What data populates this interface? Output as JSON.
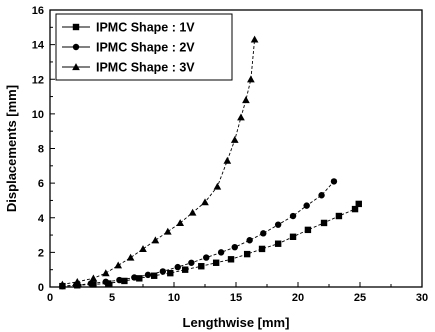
{
  "chart_data": {
    "type": "line",
    "title": "",
    "xlabel": "Lengthwise [mm]",
    "ylabel": "Displacements [mm]",
    "xlim": [
      0,
      30
    ],
    "ylim": [
      0,
      16
    ],
    "xticks": [
      0,
      5,
      10,
      15,
      20,
      25,
      30
    ],
    "yticks": [
      0,
      2,
      4,
      6,
      8,
      10,
      12,
      14,
      16
    ],
    "grid": false,
    "legend_position": "top-left",
    "series": [
      {
        "name": "IPMC Shape : 1V",
        "marker": "square",
        "x": [
          1.0,
          2.2,
          3.5,
          4.7,
          6.0,
          7.2,
          8.4,
          9.7,
          10.9,
          12.2,
          13.4,
          14.6,
          15.9,
          17.1,
          18.4,
          19.6,
          20.8,
          22.1,
          23.3,
          24.6,
          24.9
        ],
        "y": [
          0.05,
          0.1,
          0.15,
          0.2,
          0.35,
          0.5,
          0.65,
          0.8,
          1.0,
          1.2,
          1.4,
          1.6,
          1.9,
          2.2,
          2.5,
          2.9,
          3.3,
          3.7,
          4.1,
          4.5,
          4.8
        ]
      },
      {
        "name": "IPMC Shape : 2V",
        "marker": "circle",
        "x": [
          1.0,
          2.1,
          3.3,
          4.5,
          5.6,
          6.8,
          7.9,
          9.1,
          10.3,
          11.4,
          12.6,
          13.8,
          14.9,
          16.1,
          17.2,
          18.4,
          19.6,
          20.7,
          21.9,
          22.9
        ],
        "y": [
          0.05,
          0.1,
          0.2,
          0.3,
          0.4,
          0.55,
          0.7,
          0.9,
          1.15,
          1.4,
          1.7,
          2.0,
          2.3,
          2.7,
          3.1,
          3.6,
          4.1,
          4.7,
          5.3,
          6.1
        ]
      },
      {
        "name": "IPMC Shape : 3V",
        "marker": "triangle",
        "x": [
          1.0,
          2.2,
          3.5,
          4.5,
          5.5,
          6.5,
          7.5,
          8.5,
          9.5,
          10.5,
          11.5,
          12.5,
          13.5,
          14.3,
          14.9,
          15.4,
          15.8,
          16.2,
          16.5
        ],
        "y": [
          0.15,
          0.3,
          0.5,
          0.8,
          1.25,
          1.7,
          2.2,
          2.7,
          3.2,
          3.7,
          4.3,
          4.9,
          5.8,
          7.3,
          8.5,
          9.8,
          10.8,
          12.0,
          14.3
        ]
      }
    ]
  }
}
